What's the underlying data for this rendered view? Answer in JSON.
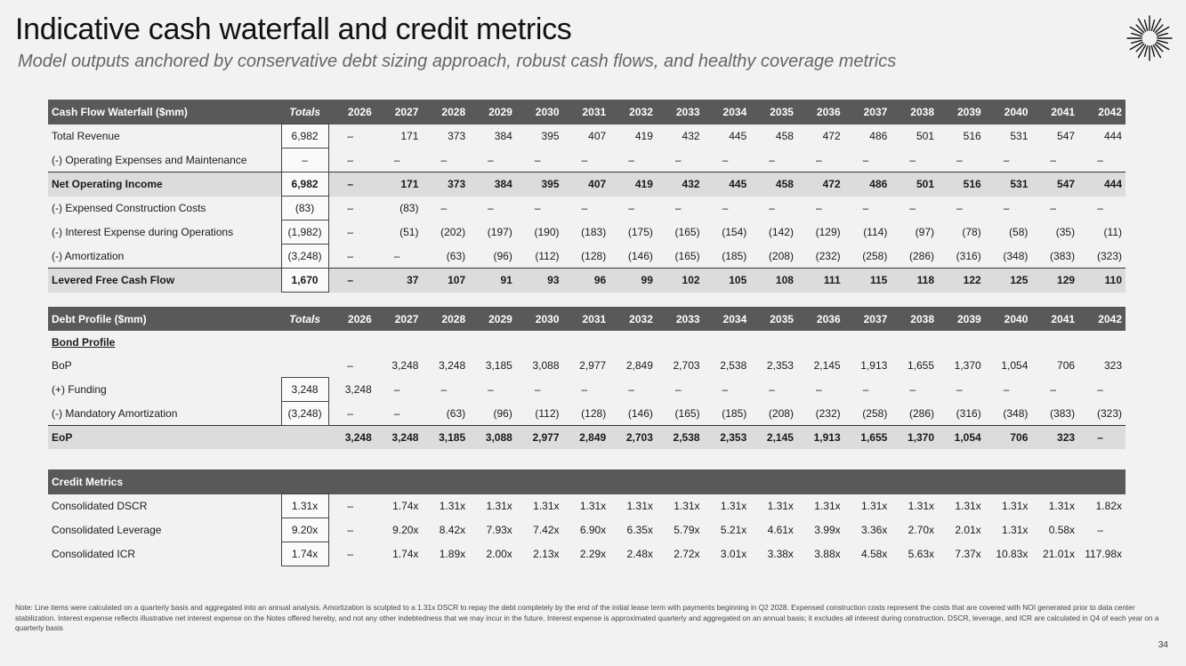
{
  "title": "Indicative cash waterfall and credit metrics",
  "subtitle": "Model outputs anchored by conservative debt sizing approach, robust cash flows, and healthy coverage metrics",
  "years": [
    "2026",
    "2027",
    "2028",
    "2029",
    "2030",
    "2031",
    "2032",
    "2033",
    "2034",
    "2035",
    "2036",
    "2037",
    "2038",
    "2039",
    "2040",
    "2041",
    "2042"
  ],
  "cash_flow": {
    "header": "Cash Flow Waterfall ($mm)",
    "totals_label": "Totals",
    "rows": [
      {
        "label": "Total Revenue",
        "total": "6,982",
        "values": [
          "–",
          "171",
          "373",
          "384",
          "395",
          "407",
          "419",
          "432",
          "445",
          "458",
          "472",
          "486",
          "501",
          "516",
          "531",
          "547",
          "444"
        ]
      },
      {
        "label": "(-) Operating Expenses and Maintenance",
        "total": "–",
        "values": [
          "–",
          "–",
          "–",
          "–",
          "–",
          "–",
          "–",
          "–",
          "–",
          "–",
          "–",
          "–",
          "–",
          "–",
          "–",
          "–",
          "–"
        ]
      },
      {
        "label": "Net Operating Income",
        "total": "6,982",
        "values": [
          "–",
          "171",
          "373",
          "384",
          "395",
          "407",
          "419",
          "432",
          "445",
          "458",
          "472",
          "486",
          "501",
          "516",
          "531",
          "547",
          "444"
        ]
      },
      {
        "label": "(-) Expensed Construction Costs",
        "total": "(83)",
        "values": [
          "–",
          "(83)",
          "–",
          "–",
          "–",
          "–",
          "–",
          "–",
          "–",
          "–",
          "–",
          "–",
          "–",
          "–",
          "–",
          "–",
          "–"
        ]
      },
      {
        "label": "(-) Interest Expense during Operations",
        "total": "(1,982)",
        "values": [
          "–",
          "(51)",
          "(202)",
          "(197)",
          "(190)",
          "(183)",
          "(175)",
          "(165)",
          "(154)",
          "(142)",
          "(129)",
          "(114)",
          "(97)",
          "(78)",
          "(58)",
          "(35)",
          "(11)"
        ]
      },
      {
        "label": "(-) Amortization",
        "total": "(3,248)",
        "values": [
          "–",
          "–",
          "(63)",
          "(96)",
          "(112)",
          "(128)",
          "(146)",
          "(165)",
          "(185)",
          "(208)",
          "(232)",
          "(258)",
          "(286)",
          "(316)",
          "(348)",
          "(383)",
          "(323)"
        ]
      },
      {
        "label": "Levered Free Cash Flow",
        "total": "1,670",
        "values": [
          "–",
          "37",
          "107",
          "91",
          "93",
          "96",
          "99",
          "102",
          "105",
          "108",
          "111",
          "115",
          "118",
          "122",
          "125",
          "129",
          "110"
        ]
      }
    ]
  },
  "debt_profile": {
    "header": "Debt Profile ($mm)",
    "totals_label": "Totals",
    "subheader": "Bond Profile",
    "rows": [
      {
        "label": "BoP",
        "total": "",
        "values": [
          "–",
          "3,248",
          "3,248",
          "3,185",
          "3,088",
          "2,977",
          "2,849",
          "2,703",
          "2,538",
          "2,353",
          "2,145",
          "1,913",
          "1,655",
          "1,370",
          "1,054",
          "706",
          "323"
        ]
      },
      {
        "label": "(+) Funding",
        "total": "3,248",
        "values": [
          "3,248",
          "–",
          "–",
          "–",
          "–",
          "–",
          "–",
          "–",
          "–",
          "–",
          "–",
          "–",
          "–",
          "–",
          "–",
          "–",
          "–"
        ]
      },
      {
        "label": "(-) Mandatory Amortization",
        "total": "(3,248)",
        "values": [
          "–",
          "–",
          "(63)",
          "(96)",
          "(112)",
          "(128)",
          "(146)",
          "(165)",
          "(185)",
          "(208)",
          "(232)",
          "(258)",
          "(286)",
          "(316)",
          "(348)",
          "(383)",
          "(323)"
        ]
      },
      {
        "label": "EoP",
        "total": "",
        "values": [
          "3,248",
          "3,248",
          "3,185",
          "3,088",
          "2,977",
          "2,849",
          "2,703",
          "2,538",
          "2,353",
          "2,145",
          "1,913",
          "1,655",
          "1,370",
          "1,054",
          "706",
          "323",
          "–"
        ]
      }
    ]
  },
  "credit_metrics": {
    "header": "Credit Metrics",
    "rows": [
      {
        "label": "Consolidated DSCR",
        "total": "1.31x",
        "values": [
          "–",
          "1.74x",
          "1.31x",
          "1.31x",
          "1.31x",
          "1.31x",
          "1.31x",
          "1.31x",
          "1.31x",
          "1.31x",
          "1.31x",
          "1.31x",
          "1.31x",
          "1.31x",
          "1.31x",
          "1.31x",
          "1.82x"
        ]
      },
      {
        "label": "Consolidated Leverage",
        "total": "9.20x",
        "values": [
          "–",
          "9.20x",
          "8.42x",
          "7.93x",
          "7.42x",
          "6.90x",
          "6.35x",
          "5.79x",
          "5.21x",
          "4.61x",
          "3.99x",
          "3.36x",
          "2.70x",
          "2.01x",
          "1.31x",
          "0.58x",
          "–"
        ]
      },
      {
        "label": "Consolidated ICR",
        "total": "1.74x",
        "values": [
          "–",
          "1.74x",
          "1.89x",
          "2.00x",
          "2.13x",
          "2.29x",
          "2.48x",
          "2.72x",
          "3.01x",
          "3.38x",
          "3.88x",
          "4.58x",
          "5.63x",
          "7.37x",
          "10.83x",
          "21.01x",
          "117.98x"
        ]
      }
    ]
  },
  "note": "Note: Line items were calculated on a quarterly basis and aggregated into an annual analysis. Amortization is sculpted to a 1.31x DSCR to repay the debt completely by the end of the initial lease term with payments beginning in Q2 2028. Expensed construction costs represent the costs that are covered with NOI generated prior to data center stabilization. Interest expense reflects illustrative net interest expense on the Notes offered hereby, and not any other indebtedness that we may incur in the future. Interest expense is approximated quarterly and aggregated on an annual basis; it excludes all interest during construction. DSCR, leverage, and ICR are calculated in Q4 of each year on a quarterly basis",
  "page_number": "34",
  "logo_icon": "starburst-logo-icon"
}
